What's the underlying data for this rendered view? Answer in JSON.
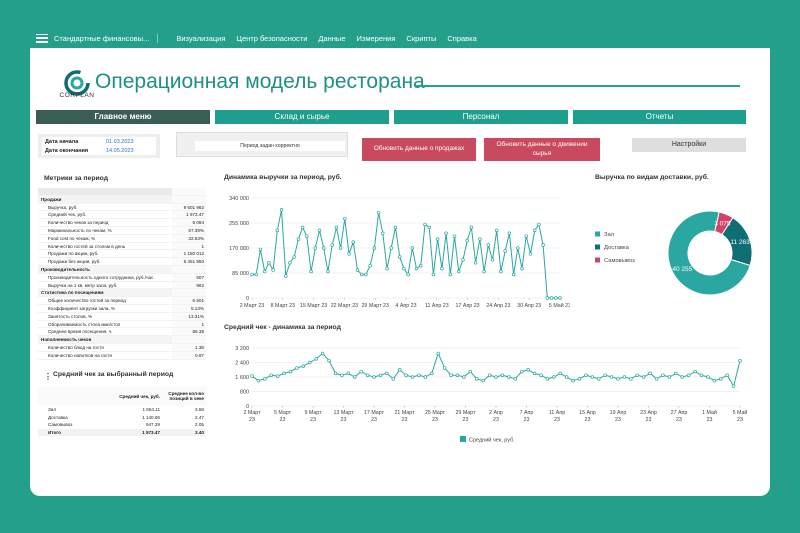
{
  "menubar": {
    "title": "Стандартные финансовы...",
    "items": [
      "Визуализация",
      "Центр безопасности",
      "Данные",
      "Измерения",
      "Скрипты",
      "Справка"
    ]
  },
  "logo_text": "CORPLAN",
  "page_title": "Операционная модель ресторана",
  "tabs": [
    "Главное меню",
    "Склад и сырье",
    "Персонал",
    "Отчеты"
  ],
  "dates": {
    "start_label": "Дата начала",
    "start_value": "01.03.2023",
    "end_label": "Дата окончания",
    "end_value": "14.05.2023"
  },
  "period_message": "Период задан корректно",
  "buttons": {
    "update_sales": "Обновить данные о продажах",
    "update_raw": "Обновить данные о движении сырья",
    "settings": "Настройки"
  },
  "metrics": {
    "title": "Метрики за период",
    "rows": [
      {
        "type": "grp",
        "label": "Продажи",
        "value": ""
      },
      {
        "type": "row",
        "label": "Выручка, руб.",
        "value": "9 601 962"
      },
      {
        "type": "row",
        "label": "Средний чек, руб.",
        "value": "1 573.47"
      },
      {
        "type": "row",
        "label": "Количество чеков за период",
        "value": "5 084"
      },
      {
        "type": "row",
        "label": "Маржинальность по чекам, %",
        "value": "67.39%"
      },
      {
        "type": "row",
        "label": "Food cost по чекам, %",
        "value": "32.63%"
      },
      {
        "type": "row",
        "label": "Количество гостей за столом в день",
        "value": "1"
      },
      {
        "type": "row",
        "label": "Продажи по акции, руб.",
        "value": "1 150 012"
      },
      {
        "type": "row",
        "label": "Продажи без акции, руб.",
        "value": "8 451 950"
      },
      {
        "type": "grp",
        "label": "Производительность",
        "value": ""
      },
      {
        "type": "row",
        "label": "Производительность одного сотрудника, руб./час",
        "value": "507"
      },
      {
        "type": "row",
        "label": "Выручка на 1 кв. метр зала, руб.",
        "value": "962"
      },
      {
        "type": "grp",
        "label": "Статистика по посещениям",
        "value": ""
      },
      {
        "type": "row",
        "label": "Общее количество гостей за период",
        "value": "6 501"
      },
      {
        "type": "row",
        "label": "Коэффициент загрузки зала, %",
        "value": "5.13%"
      },
      {
        "type": "row",
        "label": "Занятость столов, %",
        "value": "13.31%"
      },
      {
        "type": "row",
        "label": "Оборачиваемость стола мин/стол",
        "value": "1"
      },
      {
        "type": "row",
        "label": "Среднее время посещения, ч.",
        "value": "66.38"
      },
      {
        "type": "grp",
        "label": "Наполняемость чеков",
        "value": ""
      },
      {
        "type": "row",
        "label": "Количество блюд на гостя",
        "value": "1.38"
      },
      {
        "type": "row",
        "label": "Количество напитков на гостя",
        "value": "0.97"
      }
    ]
  },
  "avg_check": {
    "title": "Средний чек за выбранный период",
    "col2": "Средний чек, руб.",
    "col3": "Среднее кол-во позиций в чеке",
    "rows": [
      {
        "label": "Зал",
        "check": "1 654.11",
        "items": "3.58"
      },
      {
        "label": "Доставка",
        "check": "1 140.66",
        "items": "2.47"
      },
      {
        "label": "Самовывоз",
        "check": "947.29",
        "items": "2.05"
      }
    ],
    "total": {
      "label": "Итого",
      "check": "1 573.47",
      "items": "3.40"
    }
  },
  "colors": {
    "teal": "#2aa7a0",
    "dark": "#0d6e73",
    "red": "#d2436b"
  },
  "chart_data": [
    {
      "type": "line",
      "title": "Динамика выручки за период, руб.",
      "ylim": [
        0,
        340000
      ],
      "yticks": [
        "0",
        "85 000",
        "170 000",
        "255 000",
        "340 000"
      ],
      "xticks": [
        "2 Март 23",
        "8 Март 23",
        "15 Март 23",
        "22 Март 23",
        "29 Март 23",
        "4 Апр 23",
        "11 Апр 23",
        "17 Апр 23",
        "24 Апр 23",
        "30 Апр 23",
        "5 Май 23"
      ],
      "values": [
        80000,
        80000,
        165000,
        90000,
        120000,
        95000,
        230000,
        300000,
        75000,
        120000,
        140000,
        200000,
        240000,
        210000,
        90000,
        170000,
        230000,
        170000,
        90000,
        180000,
        240000,
        170000,
        270000,
        150000,
        190000,
        95000,
        80000,
        80000,
        110000,
        170000,
        290000,
        220000,
        100000,
        170000,
        240000,
        140000,
        100000,
        80000,
        170000,
        100000,
        110000,
        250000,
        240000,
        80000,
        200000,
        100000,
        220000,
        80000,
        210000,
        90000,
        130000,
        195000,
        240000,
        120000,
        200000,
        90000,
        180000,
        130000,
        230000,
        90000,
        160000,
        220000,
        80000,
        170000,
        100000,
        210000,
        150000,
        230000,
        250000,
        180000,
        0,
        0,
        0,
        0
      ]
    },
    {
      "type": "pie",
      "title": "Выручка по видам доставки, руб.",
      "slices": [
        {
          "name": "Зал",
          "value": 40255
        },
        {
          "name": "Доставка",
          "value": 11263
        },
        {
          "name": "Самовывоз",
          "value": 3075
        }
      ],
      "labels": [
        "40 255",
        "11 263",
        "3 075"
      ]
    },
    {
      "type": "line",
      "title": "Средний чек - динамика за период",
      "ylim": [
        0,
        3200
      ],
      "yticks": [
        "0",
        "800",
        "1 600",
        "2 400",
        "3 200"
      ],
      "xticks": [
        "2 Март 23",
        "5 Март 23",
        "9 Март 23",
        "13 Март 23",
        "17 Март 23",
        "21 Март 23",
        "25 Март 23",
        "29 Март 23",
        "2 Апр 23",
        "7 Апр 23",
        "11 Апр 23",
        "15 Апр 23",
        "19 Апр 23",
        "23 Апр 23",
        "27 Апр 23",
        "1 Май 23",
        "5 Май 23"
      ],
      "legend": "Средний чек, руб.",
      "values": [
        1650,
        1400,
        1500,
        1700,
        1650,
        1800,
        1900,
        2100,
        2200,
        2400,
        2600,
        2900,
        2500,
        1800,
        1700,
        1800,
        1600,
        1900,
        1700,
        1600,
        1700,
        1800,
        1500,
        2000,
        1700,
        1600,
        1700,
        1600,
        1800,
        2900,
        2100,
        1700,
        1700,
        1600,
        1900,
        1500,
        1400,
        1700,
        1600,
        1700,
        1600,
        1500,
        1900,
        2000,
        1800,
        1700,
        1500,
        1600,
        1800,
        1600,
        1400,
        1500,
        1700,
        1600,
        1500,
        1700,
        1600,
        1500,
        1600,
        1500,
        1700,
        1600,
        1800,
        1500,
        1700,
        1600,
        1800,
        1600,
        1700,
        1900,
        1700,
        1600,
        1400,
        1500,
        1700,
        1100,
        2500
      ]
    }
  ]
}
